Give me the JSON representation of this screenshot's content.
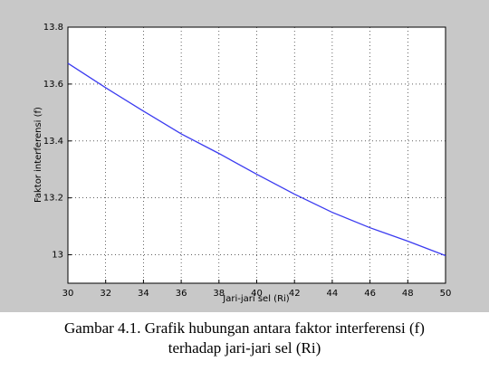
{
  "chart_data": {
    "type": "line",
    "xlabel": "Jari-jari sel (Ri)",
    "ylabel": "Faktor interferensi (f)",
    "x": [
      30,
      32,
      34,
      36,
      38,
      40,
      42,
      44,
      46,
      48,
      50
    ],
    "series": [
      {
        "color": "#3b3bf0",
        "values": [
          13.673,
          13.587,
          13.505,
          13.425,
          13.356,
          13.283,
          13.213,
          13.149,
          13.095,
          13.048,
          12.997
        ]
      }
    ],
    "xlim": [
      30,
      50
    ],
    "xticks": [
      30,
      32,
      34,
      36,
      38,
      40,
      42,
      44,
      46,
      48,
      50
    ],
    "ylim": [
      12.9,
      13.8
    ],
    "yticks": [
      13,
      13.2,
      13.4,
      13.6,
      13.8
    ],
    "grid": true
  },
  "caption": {
    "line1": "Gambar 4.1. Grafik hubungan antara faktor interferensi (f)",
    "line2": "terhadap jari-jari sel (Ri)"
  }
}
